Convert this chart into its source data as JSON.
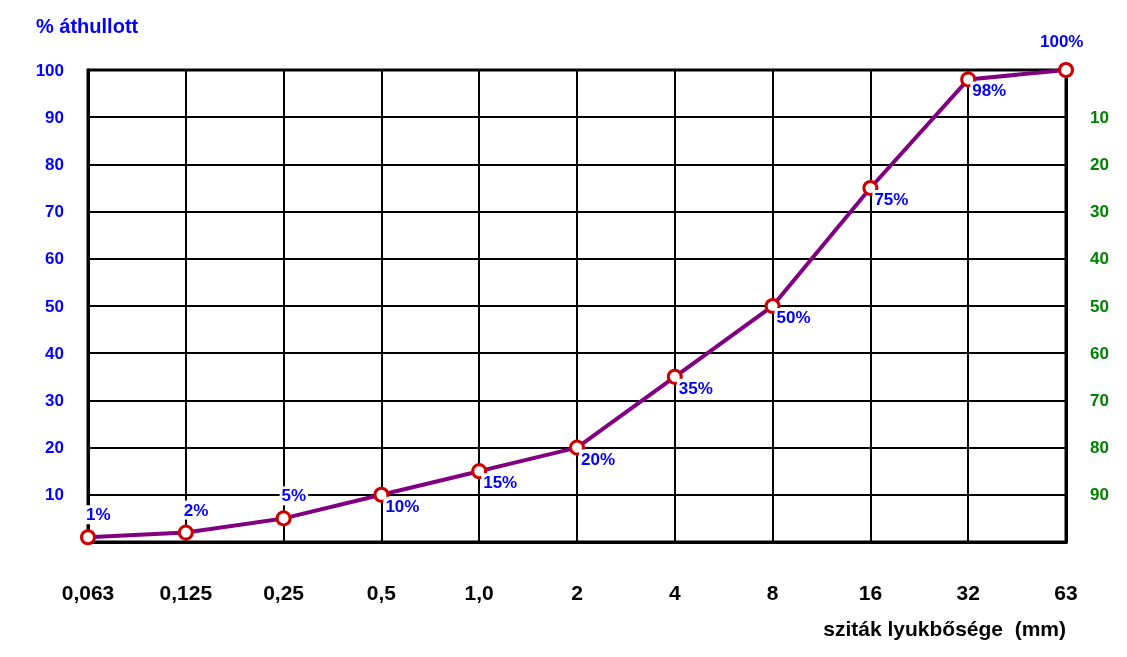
{
  "chart_data": {
    "type": "line",
    "ylabel": "% áthullott",
    "xlabel": "sziták lyukbősége  (mm)",
    "categories": [
      "0,063",
      "0,125",
      "0,25",
      "0,5",
      "1,0",
      "2",
      "4",
      "8",
      "16",
      "32",
      "63"
    ],
    "series": [
      {
        "color": "#800080",
        "values": [
          1,
          2,
          5,
          10,
          15,
          20,
          35,
          50,
          75,
          98,
          100
        ],
        "value_labels": [
          "1%",
          "2%",
          "5%",
          "10%",
          "15%",
          "20%",
          "35%",
          "50%",
          "75%",
          "98%",
          "100%"
        ]
      }
    ],
    "marker": "circle",
    "line_style": "solid",
    "grid": true,
    "ylim": [
      0,
      100
    ],
    "yticks": [
      10,
      20,
      30,
      40,
      50,
      60,
      70,
      80,
      90,
      100
    ],
    "y2lim": [
      100,
      0
    ],
    "y2ticks": [
      10,
      20,
      30,
      40,
      50,
      60,
      70,
      80,
      90
    ]
  }
}
